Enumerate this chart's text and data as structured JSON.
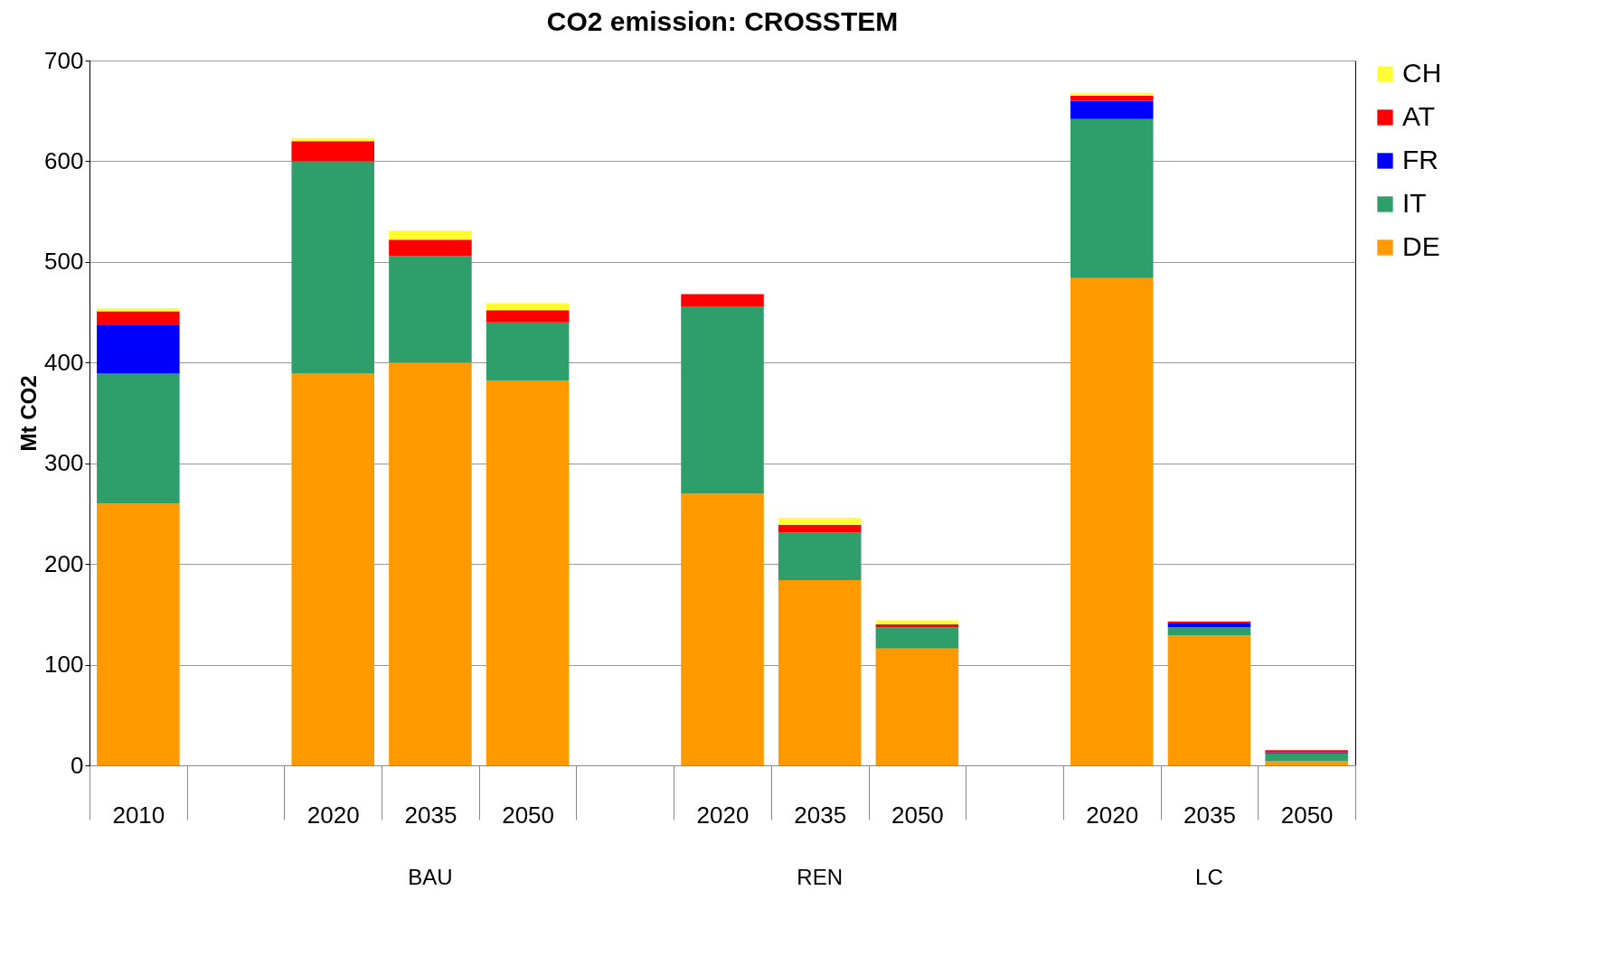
{
  "chart_data": {
    "type": "bar",
    "title": "CO2 emission: CROSSTEM",
    "ylabel": "Mt CO2",
    "stacked": true,
    "categories": [
      "2010",
      null,
      "2020",
      "2035",
      "2050",
      null,
      "2020",
      "2035",
      "2050",
      null,
      "2020",
      "2035",
      "2050"
    ],
    "series": [
      {
        "name": "DE",
        "color": "#ff9900",
        "values": [
          260,
          null,
          389,
          400,
          382,
          null,
          270,
          184,
          116,
          null,
          484,
          129,
          4
        ]
      },
      {
        "name": "IT",
        "color": "#2e9e6b",
        "values": [
          129,
          null,
          211,
          106,
          58,
          null,
          186,
          47,
          21,
          null,
          158,
          8,
          8
        ]
      },
      {
        "name": "FR",
        "color": "#0000ff",
        "values": [
          48,
          null,
          0,
          0,
          0,
          null,
          0,
          0,
          0,
          null,
          18,
          4,
          1
        ]
      },
      {
        "name": "AT",
        "color": "#ff0000",
        "values": [
          14,
          null,
          20,
          16,
          12,
          null,
          12,
          8,
          3,
          null,
          5,
          2,
          2
        ]
      },
      {
        "name": "CH",
        "color": "#ffff33",
        "values": [
          3,
          null,
          3,
          9,
          7,
          null,
          0,
          7,
          4,
          null,
          3,
          0,
          0
        ]
      }
    ],
    "ylim": [
      0,
      700
    ],
    "yticks": [
      0,
      100,
      200,
      300,
      400,
      500,
      600,
      700
    ],
    "grid": "y",
    "legend": "right",
    "annotations": [
      "BAU",
      "REN",
      "LC"
    ]
  }
}
